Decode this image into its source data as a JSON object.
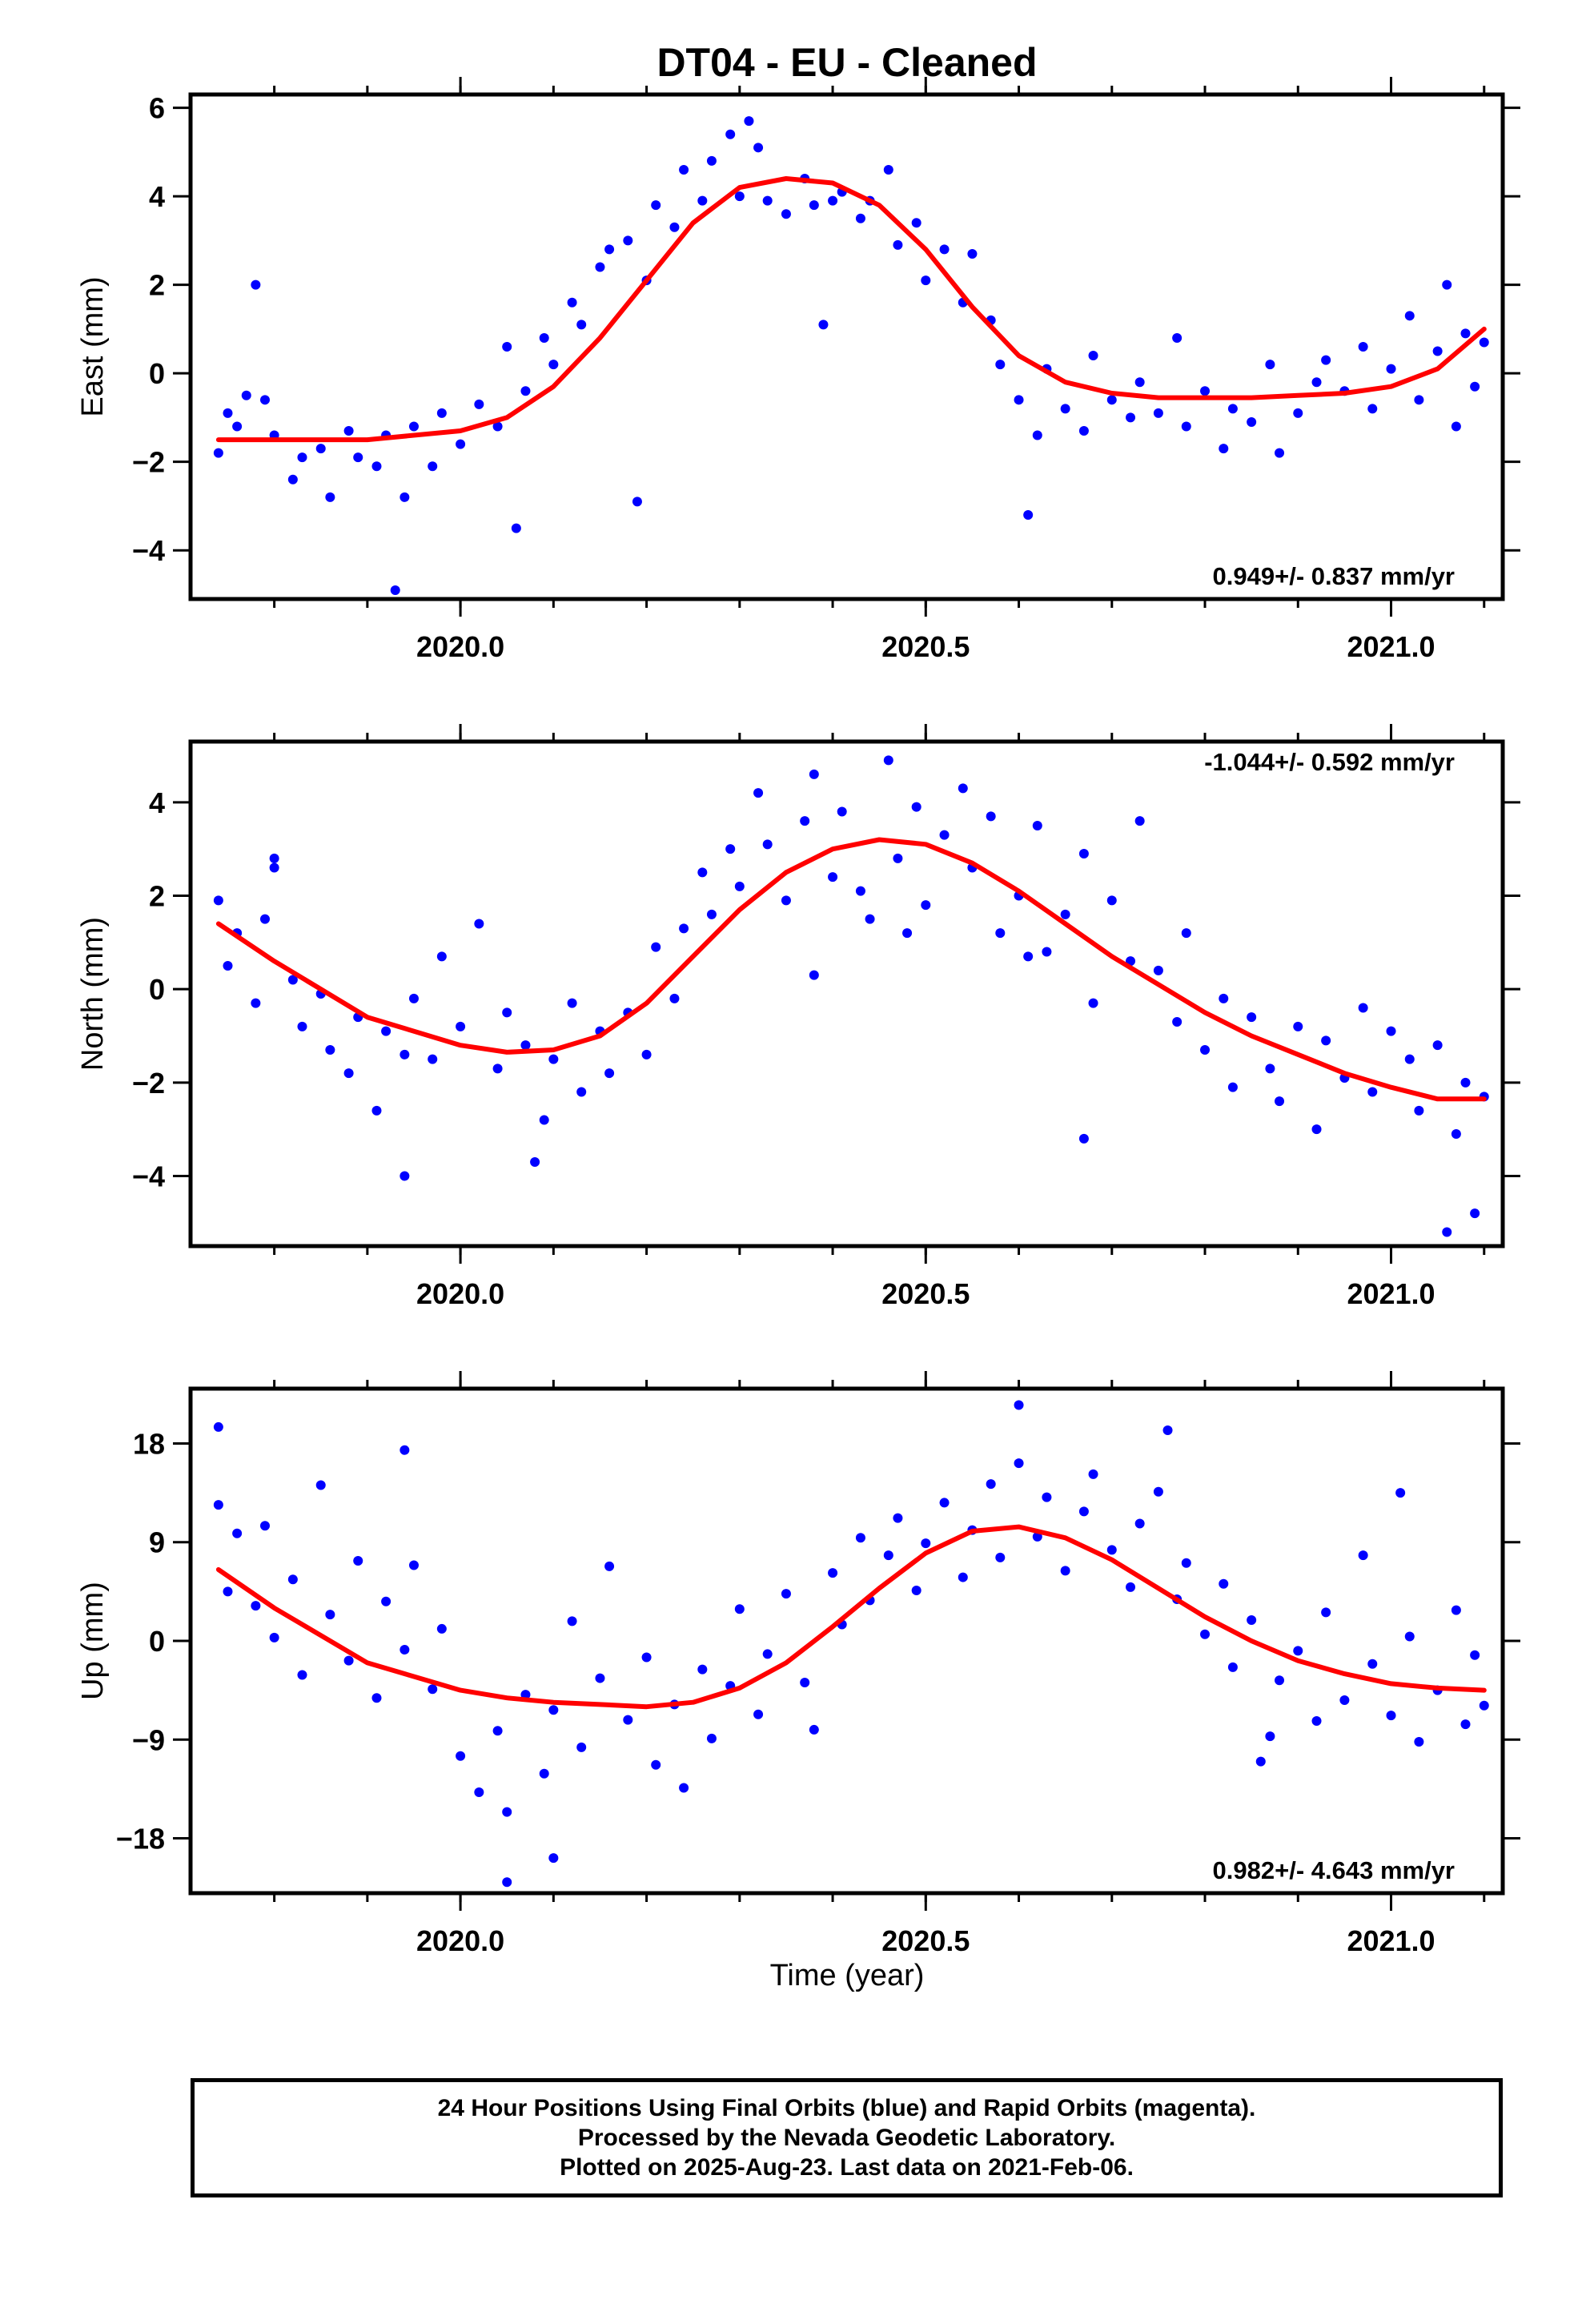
{
  "figure_title": "DT04  - EU - Cleaned",
  "xlabel": "Time (year)",
  "footer": {
    "line1": "24 Hour Positions Using Final Orbits (blue) and Rapid Orbits (magenta).",
    "line2": "Processed by the Nevada Geodetic Laboratory.",
    "line3": "Plotted on 2025-Aug-23. Last data on 2021-Feb-06."
  },
  "colors": {
    "points": "#0000ff",
    "fit": "#ff0000",
    "axes": "#000000"
  },
  "chart_data": [
    {
      "type": "scatter",
      "title": "DT04  - EU - Cleaned",
      "ylabel": "East (mm)",
      "xlabel": "",
      "xlim": [
        2019.71,
        2021.12
      ],
      "ylim": [
        -5.1,
        6.3
      ],
      "x_ticks": [
        2020.0,
        2020.5,
        2021.0
      ],
      "x_tick_labels": [
        "2020.0",
        "2020.5",
        "2021.0"
      ],
      "y_ticks": [
        -4,
        -2,
        0,
        2,
        4,
        6
      ],
      "y_tick_labels": [
        "−4",
        "−2",
        "0",
        "2",
        "4",
        "6"
      ],
      "rate_label": "0.949+/- 0.837 mm/yr",
      "rate_label_position": "bottom-right",
      "grid": false,
      "fit_line": {
        "x": [
          2019.74,
          2019.8,
          2019.9,
          2020.0,
          2020.05,
          2020.1,
          2020.15,
          2020.2,
          2020.25,
          2020.3,
          2020.35,
          2020.4,
          2020.45,
          2020.5,
          2020.55,
          2020.6,
          2020.65,
          2020.7,
          2020.75,
          2020.8,
          2020.85,
          2020.9,
          2020.95,
          2021.0,
          2021.05,
          2021.1
        ],
        "y": [
          -1.5,
          -1.5,
          -1.5,
          -1.3,
          -1.0,
          -0.3,
          0.8,
          2.1,
          3.4,
          4.2,
          4.4,
          4.3,
          3.8,
          2.8,
          1.5,
          0.4,
          -0.2,
          -0.45,
          -0.55,
          -0.55,
          -0.55,
          -0.5,
          -0.45,
          -0.3,
          0.1,
          1.0
        ]
      },
      "points": {
        "x": [
          2019.74,
          2019.75,
          2019.76,
          2019.78,
          2019.79,
          2019.8,
          2019.82,
          2019.83,
          2019.85,
          2019.86,
          2019.88,
          2019.89,
          2019.91,
          2019.92,
          2019.94,
          2019.95,
          2019.97,
          2019.98,
          2020.0,
          2020.02,
          2020.04,
          2020.05,
          2020.07,
          2020.09,
          2020.1,
          2020.12,
          2020.13,
          2020.15,
          2020.16,
          2020.18,
          2020.2,
          2020.21,
          2020.23,
          2020.24,
          2020.26,
          2020.27,
          2020.29,
          2020.3,
          2020.32,
          2020.33,
          2020.35,
          2020.37,
          2020.38,
          2020.4,
          2020.41,
          2020.43,
          2020.44,
          2020.46,
          2020.47,
          2020.49,
          2020.5,
          2020.52,
          2020.54,
          2020.55,
          2020.57,
          2020.58,
          2020.6,
          2020.62,
          2020.63,
          2020.65,
          2020.67,
          2020.68,
          2020.7,
          2020.72,
          2020.73,
          2020.75,
          2020.77,
          2020.78,
          2020.8,
          2020.82,
          2020.83,
          2020.85,
          2020.87,
          2020.88,
          2020.9,
          2020.92,
          2020.93,
          2020.95,
          2020.97,
          2020.98,
          2021.0,
          2021.02,
          2021.03,
          2021.05,
          2021.07,
          2021.08,
          2021.09,
          2021.1,
          2019.77,
          2019.93,
          2020.06,
          2020.19,
          2020.39,
          2020.61,
          2021.06,
          2020.31
        ],
        "y": [
          -1.8,
          -0.9,
          -1.2,
          2.0,
          -0.6,
          -1.4,
          -2.4,
          -1.9,
          -1.7,
          -2.8,
          -1.3,
          -1.9,
          -2.1,
          -1.4,
          -2.8,
          -1.2,
          -2.1,
          -0.9,
          -1.6,
          -0.7,
          -1.2,
          0.6,
          -0.4,
          0.8,
          0.2,
          1.6,
          1.1,
          2.4,
          2.8,
          3.0,
          2.1,
          3.8,
          3.3,
          4.6,
          3.9,
          4.8,
          5.4,
          4.0,
          5.1,
          3.9,
          3.6,
          4.4,
          3.8,
          3.9,
          4.1,
          3.5,
          3.9,
          4.6,
          2.9,
          3.4,
          2.1,
          2.8,
          1.6,
          2.7,
          1.2,
          0.2,
          -0.6,
          -1.4,
          0.1,
          -0.8,
          -1.3,
          0.4,
          -0.6,
          -1.0,
          -0.2,
          -0.9,
          0.8,
          -1.2,
          -0.4,
          -1.7,
          -0.8,
          -1.1,
          0.2,
          -1.8,
          -0.9,
          -0.2,
          0.3,
          -0.4,
          0.6,
          -0.8,
          0.1,
          1.3,
          -0.6,
          0.5,
          -1.2,
          0.9,
          -0.3,
          0.7,
          -0.5,
          -4.9,
          -3.5,
          -2.9,
          1.1,
          -3.2,
          2.0,
          5.7
        ]
      }
    },
    {
      "type": "scatter",
      "ylabel": "North (mm)",
      "xlabel": "",
      "xlim": [
        2019.71,
        2021.12
      ],
      "ylim": [
        -5.5,
        5.3
      ],
      "x_ticks": [
        2020.0,
        2020.5,
        2021.0
      ],
      "x_tick_labels": [
        "2020.0",
        "2020.5",
        "2021.0"
      ],
      "y_ticks": [
        -4,
        -2,
        0,
        2,
        4
      ],
      "y_tick_labels": [
        "−4",
        "−2",
        "0",
        "2",
        "4"
      ],
      "rate_label": "-1.044+/- 0.592 mm/yr",
      "rate_label_position": "top-right",
      "grid": false,
      "fit_line": {
        "x": [
          2019.74,
          2019.8,
          2019.9,
          2020.0,
          2020.05,
          2020.1,
          2020.15,
          2020.2,
          2020.25,
          2020.3,
          2020.35,
          2020.4,
          2020.45,
          2020.5,
          2020.55,
          2020.6,
          2020.65,
          2020.7,
          2020.75,
          2020.8,
          2020.85,
          2020.9,
          2020.95,
          2021.0,
          2021.05,
          2021.1
        ],
        "y": [
          1.4,
          0.6,
          -0.6,
          -1.2,
          -1.35,
          -1.3,
          -1.0,
          -0.3,
          0.7,
          1.7,
          2.5,
          3.0,
          3.2,
          3.1,
          2.7,
          2.1,
          1.4,
          0.7,
          0.1,
          -0.5,
          -1.0,
          -1.4,
          -1.8,
          -2.1,
          -2.35,
          -2.35
        ]
      },
      "points": {
        "x": [
          2019.74,
          2019.75,
          2019.76,
          2019.78,
          2019.79,
          2019.8,
          2019.82,
          2019.83,
          2019.85,
          2019.86,
          2019.88,
          2019.89,
          2019.91,
          2019.92,
          2019.94,
          2019.95,
          2019.97,
          2019.98,
          2020.0,
          2020.02,
          2020.04,
          2020.05,
          2020.07,
          2020.09,
          2020.1,
          2020.12,
          2020.13,
          2020.15,
          2020.16,
          2020.18,
          2020.2,
          2020.21,
          2020.23,
          2020.24,
          2020.26,
          2020.27,
          2020.29,
          2020.3,
          2020.32,
          2020.33,
          2020.35,
          2020.37,
          2020.38,
          2020.4,
          2020.41,
          2020.43,
          2020.44,
          2020.46,
          2020.47,
          2020.49,
          2020.5,
          2020.52,
          2020.54,
          2020.55,
          2020.57,
          2020.58,
          2020.6,
          2020.62,
          2020.63,
          2020.65,
          2020.67,
          2020.68,
          2020.7,
          2020.72,
          2020.73,
          2020.75,
          2020.77,
          2020.78,
          2020.8,
          2020.82,
          2020.83,
          2020.85,
          2020.87,
          2020.88,
          2020.9,
          2020.92,
          2020.93,
          2020.95,
          2020.97,
          2020.98,
          2021.0,
          2021.02,
          2021.03,
          2021.05,
          2021.07,
          2021.08,
          2021.09,
          2021.1,
          2019.8,
          2019.94,
          2020.08,
          2020.38,
          2020.61,
          2020.67,
          2021.06,
          2020.48
        ],
        "y": [
          1.9,
          0.5,
          1.2,
          -0.3,
          1.5,
          2.8,
          0.2,
          -0.8,
          -0.1,
          -1.3,
          -1.8,
          -0.6,
          -2.6,
          -0.9,
          -1.4,
          -0.2,
          -1.5,
          0.7,
          -0.8,
          1.4,
          -1.7,
          -0.5,
          -1.2,
          -2.8,
          -1.5,
          -0.3,
          -2.2,
          -0.9,
          -1.8,
          -0.5,
          -1.4,
          0.9,
          -0.2,
          1.3,
          2.5,
          1.6,
          3.0,
          2.2,
          4.2,
          3.1,
          1.9,
          3.6,
          4.6,
          2.4,
          3.8,
          2.1,
          1.5,
          4.9,
          2.8,
          3.9,
          1.8,
          3.3,
          4.3,
          2.6,
          3.7,
          1.2,
          2.0,
          3.5,
          0.8,
          1.6,
          2.9,
          -0.3,
          1.9,
          0.6,
          3.6,
          0.4,
          -0.7,
          1.2,
          -1.3,
          -0.2,
          -2.1,
          -0.6,
          -1.7,
          -2.4,
          -0.8,
          -3.0,
          -1.1,
          -1.9,
          -0.4,
          -2.2,
          -0.9,
          -1.5,
          -2.6,
          -1.2,
          -3.1,
          -2.0,
          -4.8,
          -2.3,
          2.6,
          -4.0,
          -3.7,
          0.3,
          0.7,
          -3.2,
          -5.2,
          1.2
        ]
      }
    },
    {
      "type": "scatter",
      "ylabel": "Up (mm)",
      "xlabel": "Time (year)",
      "xlim": [
        2019.71,
        2021.12
      ],
      "ylim": [
        -23,
        23
      ],
      "x_ticks": [
        2020.0,
        2020.5,
        2021.0
      ],
      "x_tick_labels": [
        "2020.0",
        "2020.5",
        "2021.0"
      ],
      "y_ticks": [
        -18,
        -9,
        0,
        9,
        18
      ],
      "y_tick_labels": [
        "−18",
        "−9",
        "0",
        "9",
        "18"
      ],
      "rate_label": "0.982+/- 4.643 mm/yr",
      "rate_label_position": "bottom-right",
      "grid": false,
      "fit_line": {
        "x": [
          2019.74,
          2019.8,
          2019.9,
          2020.0,
          2020.05,
          2020.1,
          2020.15,
          2020.2,
          2020.25,
          2020.3,
          2020.35,
          2020.4,
          2020.45,
          2020.5,
          2020.55,
          2020.6,
          2020.65,
          2020.7,
          2020.75,
          2020.8,
          2020.85,
          2020.9,
          2020.95,
          2021.0,
          2021.05,
          2021.1
        ],
        "y": [
          6.5,
          3.0,
          -2.0,
          -4.5,
          -5.2,
          -5.6,
          -5.8,
          -6.0,
          -5.6,
          -4.3,
          -2.0,
          1.3,
          4.8,
          8.0,
          10.0,
          10.4,
          9.4,
          7.4,
          4.8,
          2.2,
          0.0,
          -1.8,
          -3.0,
          -3.9,
          -4.3,
          -4.5
        ]
      },
      "points": {
        "x": [
          2019.74,
          2019.75,
          2019.76,
          2019.78,
          2019.79,
          2019.8,
          2019.82,
          2019.83,
          2019.85,
          2019.86,
          2019.88,
          2019.89,
          2019.91,
          2019.92,
          2019.94,
          2019.95,
          2019.97,
          2019.98,
          2020.0,
          2020.02,
          2020.04,
          2020.05,
          2020.07,
          2020.09,
          2020.1,
          2020.12,
          2020.13,
          2020.15,
          2020.16,
          2020.18,
          2020.2,
          2020.21,
          2020.23,
          2020.24,
          2020.26,
          2020.27,
          2020.29,
          2020.3,
          2020.32,
          2020.33,
          2020.35,
          2020.37,
          2020.38,
          2020.4,
          2020.41,
          2020.43,
          2020.44,
          2020.46,
          2020.47,
          2020.49,
          2020.5,
          2020.52,
          2020.54,
          2020.55,
          2020.57,
          2020.58,
          2020.6,
          2020.62,
          2020.63,
          2020.65,
          2020.67,
          2020.68,
          2020.7,
          2020.72,
          2020.73,
          2020.75,
          2020.77,
          2020.78,
          2020.8,
          2020.82,
          2020.83,
          2020.85,
          2020.87,
          2020.88,
          2020.9,
          2020.92,
          2020.93,
          2020.95,
          2020.97,
          2020.98,
          2021.0,
          2021.02,
          2021.03,
          2021.05,
          2021.07,
          2021.08,
          2021.09,
          2021.1,
          2019.74,
          2019.94,
          2020.05,
          2020.1,
          2020.6,
          2020.76,
          2020.86,
          2021.01
        ],
        "y": [
          12.4,
          4.5,
          9.8,
          3.2,
          10.5,
          0.3,
          5.6,
          -3.1,
          14.2,
          2.4,
          -1.8,
          7.3,
          -5.2,
          3.6,
          -0.8,
          6.9,
          -4.4,
          1.1,
          -10.5,
          -13.8,
          -8.2,
          -15.6,
          -4.9,
          -12.1,
          -6.3,
          1.8,
          -9.7,
          -3.4,
          6.8,
          -7.2,
          -1.5,
          -11.3,
          -5.8,
          -13.4,
          -2.6,
          -8.9,
          -4.1,
          2.9,
          -6.7,
          -1.2,
          4.3,
          -3.8,
          -8.1,
          6.2,
          1.5,
          9.4,
          3.7,
          7.8,
          11.2,
          4.6,
          8.9,
          12.6,
          5.8,
          10.1,
          14.3,
          7.6,
          16.2,
          9.5,
          13.1,
          6.4,
          11.8,
          15.2,
          8.3,
          4.9,
          10.7,
          13.6,
          3.8,
          7.1,
          0.6,
          5.2,
          -2.4,
          1.9,
          -8.7,
          -3.6,
          -0.9,
          -7.3,
          2.6,
          -5.4,
          7.8,
          -2.1,
          -6.8,
          0.4,
          -9.2,
          -4.5,
          2.8,
          -7.6,
          -1.3,
          -5.9,
          19.5,
          17.4,
          -22.0,
          -19.8,
          21.5,
          19.2,
          -11.0,
          13.5
        ]
      }
    }
  ]
}
